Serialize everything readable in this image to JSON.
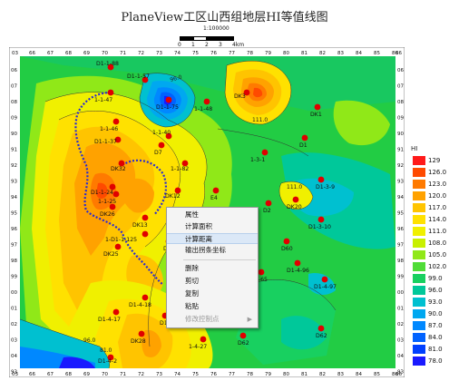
{
  "title": "PlaneView工区山西组地层HI等值线图",
  "scale": {
    "ratio": "1:100000",
    "ticks": [
      "0",
      "1",
      "2",
      "3",
      "4km"
    ]
  },
  "grid": {
    "x_labels": [
      "66",
      "67",
      "68",
      "69",
      "70",
      "71",
      "72",
      "73",
      "74",
      "75",
      "76",
      "77",
      "78",
      "79",
      "80",
      "81",
      "82",
      "83",
      "84",
      "85",
      "86"
    ],
    "y_labels": [
      "06",
      "07",
      "08",
      "09",
      "90",
      "91",
      "92",
      "93",
      "94",
      "95",
      "96",
      "97",
      "98",
      "99",
      "00",
      "01",
      "02",
      "03",
      "04",
      "93"
    ],
    "corner_tl": "03",
    "corner_tr": "86",
    "corner_bl": "03",
    "corner_br": "86"
  },
  "contour_labels": [
    "96.0",
    "111.0",
    "111.0",
    "96.0",
    "81.0"
  ],
  "wells": [
    {
      "name": "D1-1-88"
    },
    {
      "name": "D1-1-57"
    },
    {
      "name": "DK3"
    },
    {
      "name": "D1-1-75"
    },
    {
      "name": "1-1-47"
    },
    {
      "name": "1-1-48"
    },
    {
      "name": "DK1"
    },
    {
      "name": "1-1-46"
    },
    {
      "name": "D1-1-37"
    },
    {
      "name": "1-1-40"
    },
    {
      "name": "D7"
    },
    {
      "name": "D1"
    },
    {
      "name": "1-3-1"
    },
    {
      "name": "DK32"
    },
    {
      "name": "1-1-82"
    },
    {
      "name": "D1-1-24"
    },
    {
      "name": "D1-3-9"
    },
    {
      "name": "1-1-25"
    },
    {
      "name": "DK12"
    },
    {
      "name": "E4"
    },
    {
      "name": "DK26"
    },
    {
      "name": "D2"
    },
    {
      "name": "DK20"
    },
    {
      "name": "DK13"
    },
    {
      "name": "D1-3-10"
    },
    {
      "name": "1-D1-1-125"
    },
    {
      "name": "D1"
    },
    {
      "name": "D60"
    },
    {
      "name": "DK25"
    },
    {
      "name": "D1-4-96"
    },
    {
      "name": "D1-4-65"
    },
    {
      "name": "D1-4-97"
    },
    {
      "name": "D1-4-18"
    },
    {
      "name": "D1-4-17"
    },
    {
      "name": "D1"
    },
    {
      "name": "DK28"
    },
    {
      "name": "1-4-27"
    },
    {
      "name": "D62"
    },
    {
      "name": "D62"
    },
    {
      "name": "D1-4-2"
    }
  ],
  "legend": {
    "header": "HI",
    "values": [
      "129",
      "126.0",
      "123.0",
      "120.0",
      "117.0",
      "114.0",
      "111.0",
      "108.0",
      "105.0",
      "102.0",
      "99.0",
      "96.0",
      "93.0",
      "90.0",
      "87.0",
      "84.0",
      "81.0",
      "78.0"
    ],
    "colors": [
      "#ff1a1a",
      "#ff4a00",
      "#ff7a00",
      "#ffa200",
      "#ffc400",
      "#ffe100",
      "#f0f000",
      "#c8f000",
      "#90e818",
      "#50dc38",
      "#18d060",
      "#00c89a",
      "#00c0d0",
      "#00a8f0",
      "#0088ff",
      "#0062ff",
      "#0040ff",
      "#1a1aff"
    ]
  },
  "context_menu": {
    "items": [
      {
        "label": "属性",
        "disabled": false,
        "highlighted": false
      },
      {
        "label": "计算面积",
        "disabled": false,
        "highlighted": false
      },
      {
        "label": "计算距离",
        "disabled": false,
        "highlighted": true
      },
      {
        "label": "输出拐条坐标",
        "disabled": false,
        "highlighted": false
      },
      {
        "label": "删除",
        "disabled": false,
        "highlighted": false
      },
      {
        "label": "剪切",
        "disabled": false,
        "highlighted": false
      },
      {
        "label": "复制",
        "disabled": false,
        "highlighted": false
      },
      {
        "label": "粘贴",
        "disabled": false,
        "highlighted": false
      },
      {
        "label": "修改控制点",
        "disabled": true,
        "highlighted": false
      }
    ],
    "submenu_arrow": "▶"
  },
  "colors": {
    "well_marker": "#e00000",
    "boundary_dots": "#2a2ad0",
    "contour": "#333333"
  }
}
